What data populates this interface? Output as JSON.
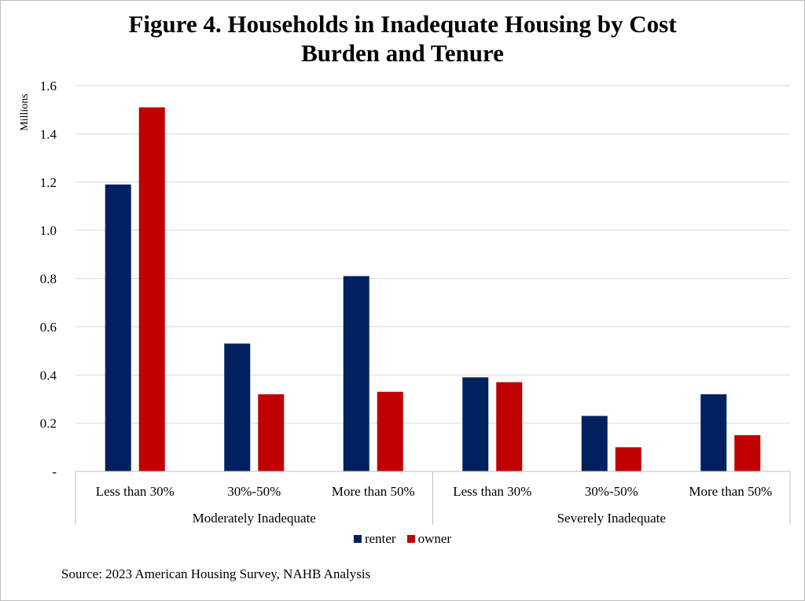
{
  "chart_data": {
    "type": "bar",
    "title_lines": [
      "Figure 4. Households in Inadequate Housing by Cost",
      "Burden and Tenure"
    ],
    "ylabel": "Millions",
    "xlabel": "",
    "ylim": [
      0,
      1.6
    ],
    "yticks": [
      0,
      0.2,
      0.4,
      0.6,
      0.8,
      1.0,
      1.2,
      1.4,
      1.6
    ],
    "ytick_labels": [
      "-",
      "0.2",
      "0.4",
      "0.6",
      "0.8",
      "1.0",
      "1.2",
      "1.4",
      "1.6"
    ],
    "grid": true,
    "legend_position": "bottom",
    "categories": [
      "Less than 30%",
      "30%-50%",
      "More than 50%",
      "Less than 30%",
      "30%-50%",
      "More than 50%"
    ],
    "groups": [
      {
        "label": "Moderately Inadequate",
        "category_count": 3
      },
      {
        "label": "Severely Inadequate",
        "category_count": 3
      }
    ],
    "series": [
      {
        "name": "renter",
        "color": "#002060",
        "values": [
          1.19,
          0.53,
          0.81,
          0.39,
          0.23,
          0.32
        ]
      },
      {
        "name": "owner",
        "color": "#C00000",
        "values": [
          1.51,
          0.32,
          0.33,
          0.37,
          0.1,
          0.15
        ]
      }
    ],
    "source": "Source: 2023 American Housing Survey, NAHB Analysis"
  }
}
